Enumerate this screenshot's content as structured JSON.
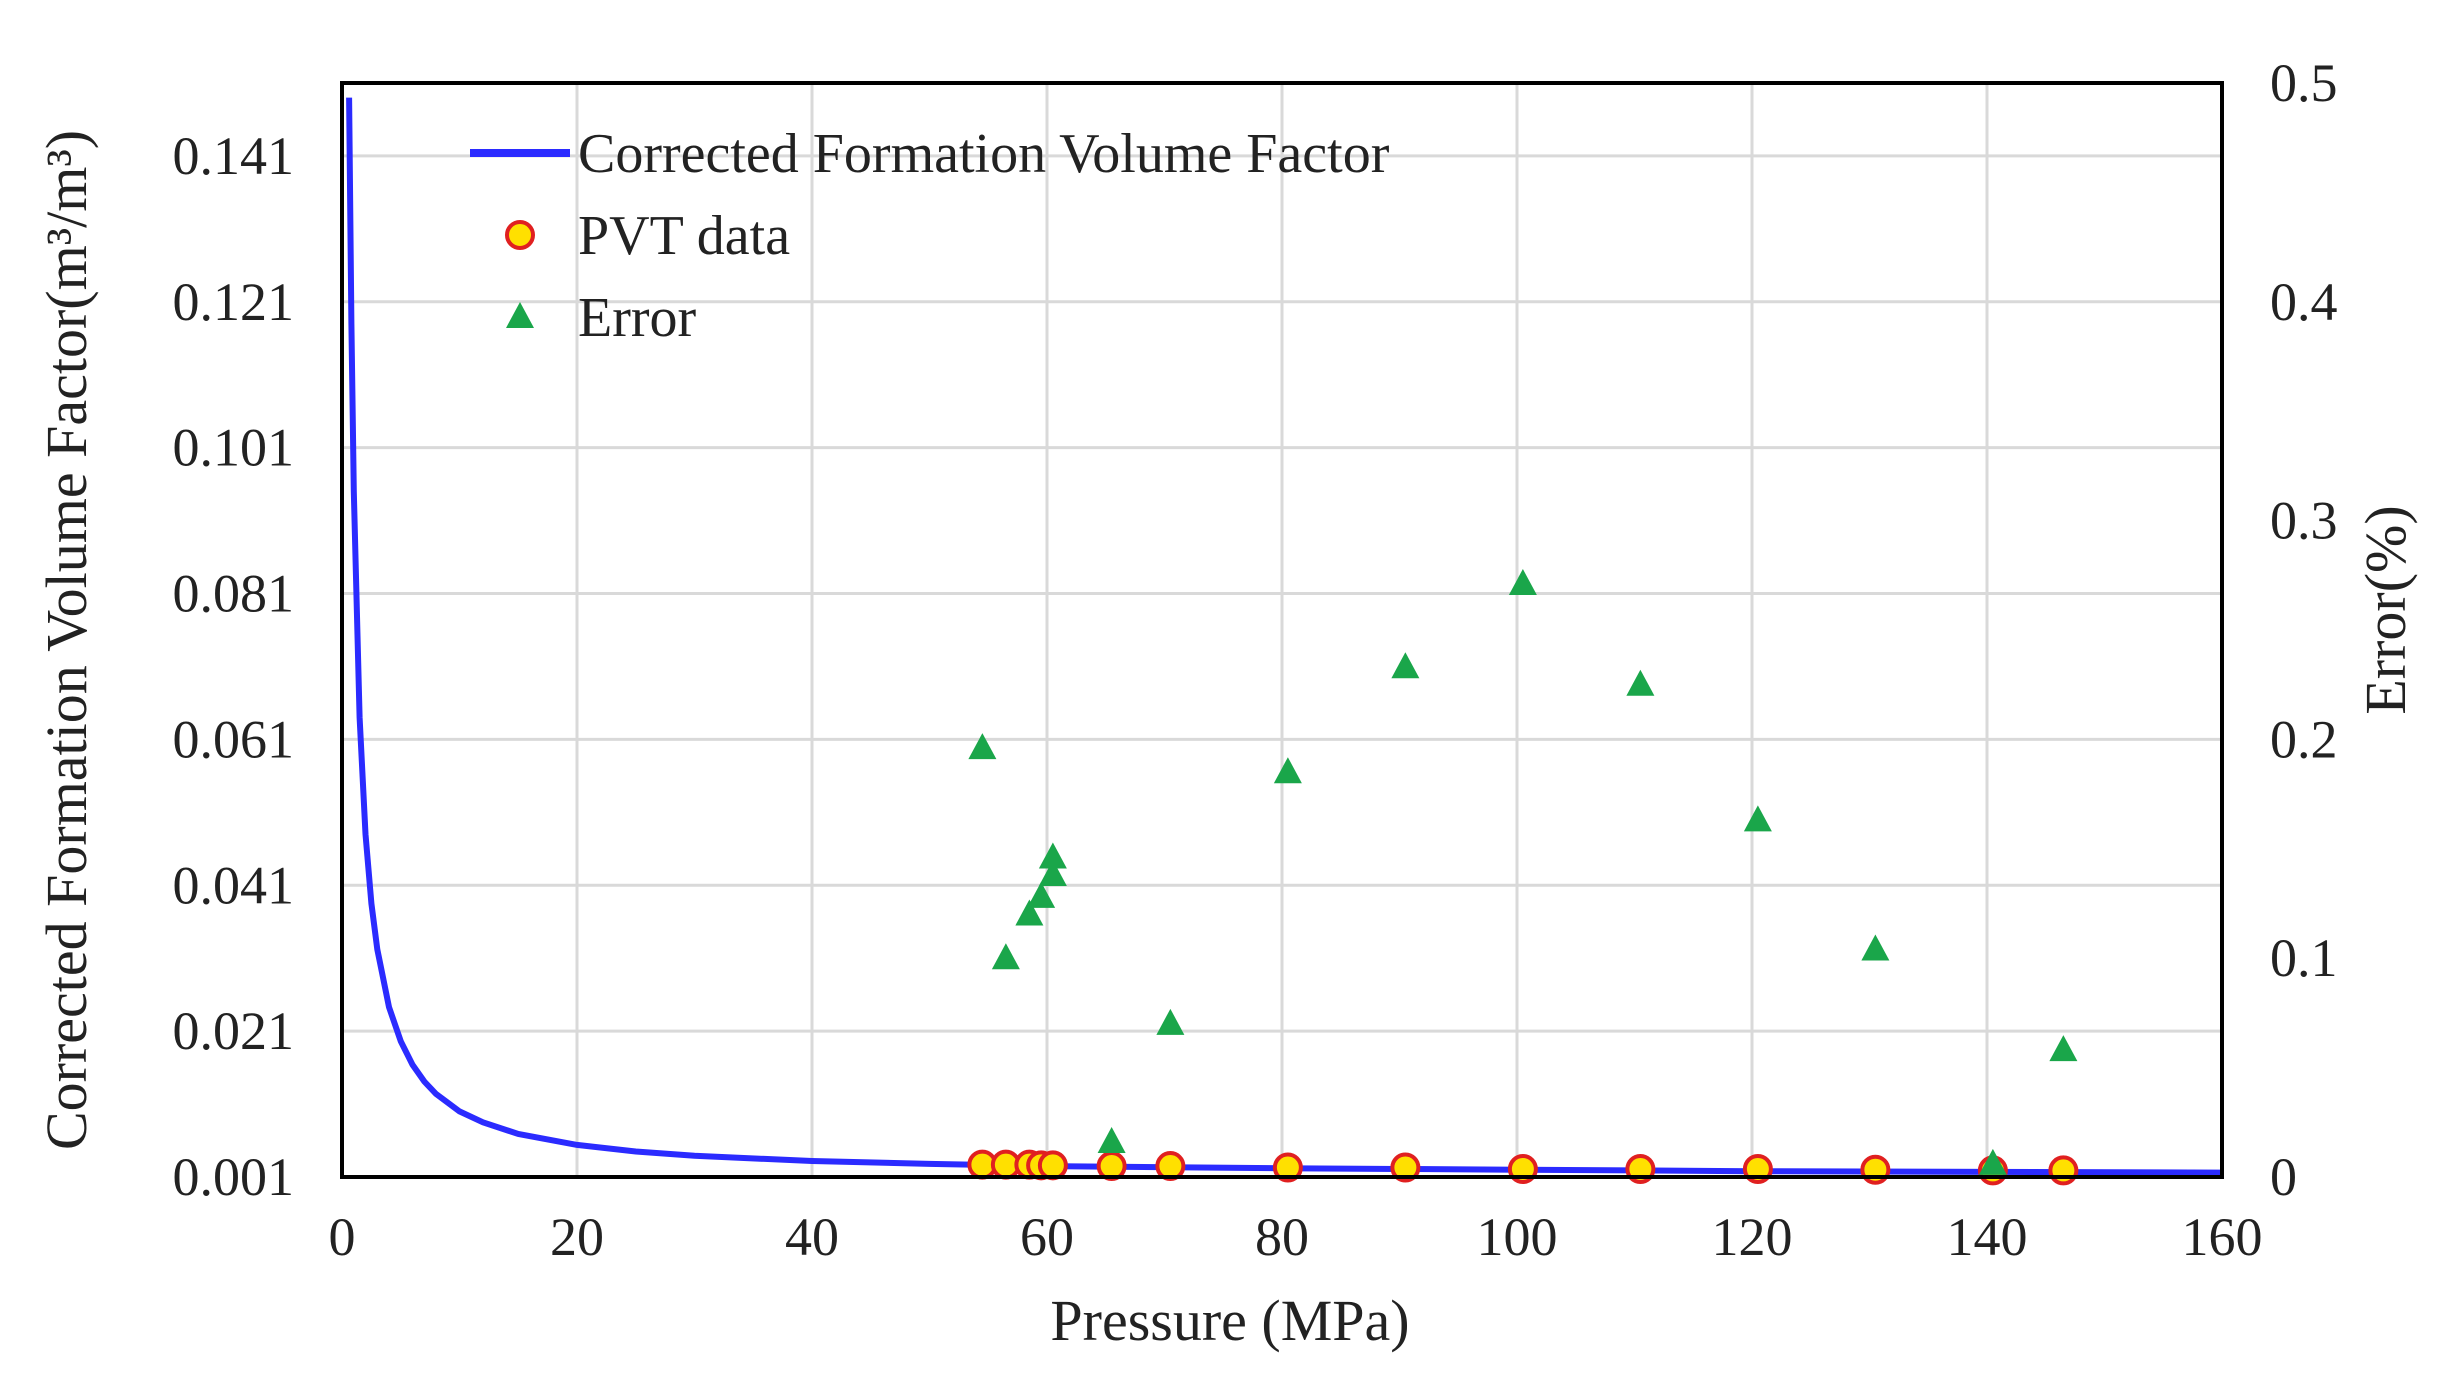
{
  "chart_data": {
    "type": "scatter",
    "title": "",
    "xlabel": "Pressure (MPa)",
    "ylabel": "Corrected Formation Volume Factor(m³/m³)",
    "y2label": "Error(%)",
    "xlim": [
      0,
      160
    ],
    "ylim": [
      0.001,
      0.151
    ],
    "y2lim": [
      0,
      0.5
    ],
    "grid": true,
    "legend_position": "top-left",
    "x_ticks": [
      "0",
      "20",
      "40",
      "60",
      "80",
      "100",
      "120",
      "140",
      "160"
    ],
    "y_ticks": [
      "0.001",
      "0.021",
      "0.041",
      "0.061",
      "0.081",
      "0.101",
      "0.121",
      "0.141"
    ],
    "y2_ticks": [
      "0",
      "0.1",
      "0.2",
      "0.3",
      "0.4",
      "0.5"
    ],
    "colors": {
      "curve": "#2b2bff",
      "pvt_fill": "#ffe000",
      "pvt_edge": "#e02020",
      "error": "#1aa64a",
      "frame": "#000000"
    },
    "series": [
      {
        "name": "Corrected Formation Volume Factor",
        "type": "line",
        "axis": "left",
        "x": [
          0.6,
          0.8,
          1,
          1.5,
          2,
          2.5,
          3,
          4,
          5,
          6,
          7,
          8,
          10,
          12,
          15,
          20,
          25,
          30,
          40,
          50,
          60,
          80,
          100,
          120,
          140,
          160
        ],
        "y": [
          0.149,
          0.118,
          0.095,
          0.064,
          0.048,
          0.0385,
          0.0322,
          0.0243,
          0.0196,
          0.0164,
          0.0141,
          0.0124,
          0.01,
          0.0085,
          0.0069,
          0.0054,
          0.0045,
          0.0039,
          0.0032,
          0.0028,
          0.0025,
          0.0022,
          0.002,
          0.0018,
          0.0017,
          0.0016
        ]
      },
      {
        "name": "PVT data",
        "type": "scatter",
        "axis": "left",
        "x": [
          54.5,
          56.5,
          58.5,
          59.5,
          60.5,
          65.5,
          70.5,
          80.5,
          90.5,
          100.5,
          110.5,
          120.5,
          130.5,
          140.5,
          146.5
        ],
        "y": [
          0.0027,
          0.0027,
          0.0027,
          0.0026,
          0.0026,
          0.0025,
          0.0025,
          0.0023,
          0.0023,
          0.0021,
          0.0021,
          0.0021,
          0.002,
          0.0019,
          0.0019
        ]
      },
      {
        "name": "Error",
        "type": "scatter",
        "axis": "right",
        "x": [
          54.5,
          56.5,
          58.5,
          59.5,
          60.5,
          60.5,
          65.5,
          70.5,
          80.5,
          90.5,
          100.5,
          110.5,
          120.5,
          130.5,
          140.5,
          146.5
        ],
        "y": [
          0.196,
          0.1,
          0.12,
          0.128,
          0.138,
          0.146,
          0.016,
          0.07,
          0.185,
          0.233,
          0.271,
          0.225,
          0.163,
          0.104,
          0.006,
          0.058
        ]
      }
    ]
  }
}
